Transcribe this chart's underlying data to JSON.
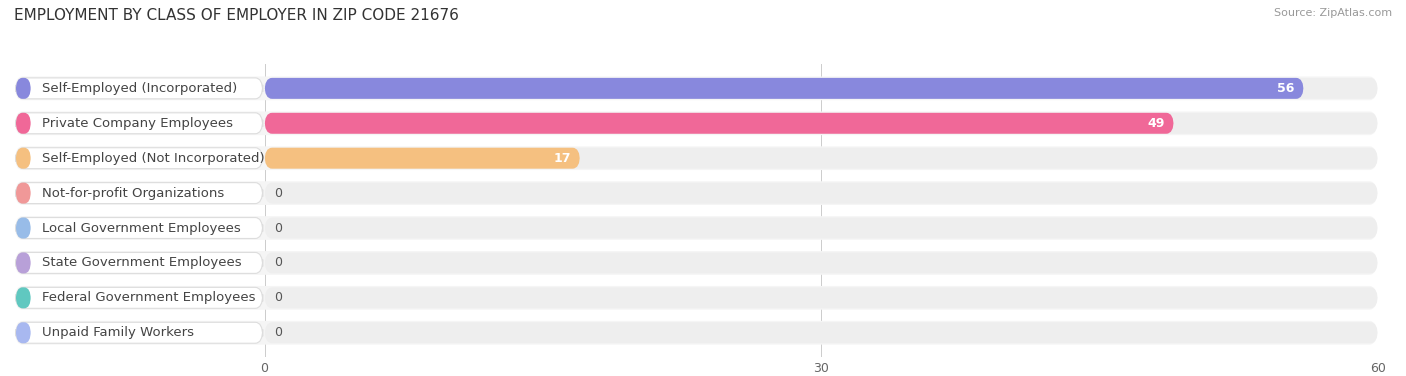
{
  "title": "EMPLOYMENT BY CLASS OF EMPLOYER IN ZIP CODE 21676",
  "source": "Source: ZipAtlas.com",
  "categories": [
    "Self-Employed (Incorporated)",
    "Private Company Employees",
    "Self-Employed (Not Incorporated)",
    "Not-for-profit Organizations",
    "Local Government Employees",
    "State Government Employees",
    "Federal Government Employees",
    "Unpaid Family Workers"
  ],
  "values": [
    56,
    49,
    17,
    0,
    0,
    0,
    0,
    0
  ],
  "bar_colors": [
    "#8888dd",
    "#f06898",
    "#f5c080",
    "#f09898",
    "#98bce8",
    "#b8a0d8",
    "#60c8c0",
    "#a8b8f0"
  ],
  "bar_bg_color": "#eeeeee",
  "row_bg_color": "#f5f5f5",
  "xlim": [
    0,
    60
  ],
  "xticks": [
    0,
    30,
    60
  ],
  "background_color": "#ffffff",
  "title_fontsize": 11,
  "label_fontsize": 9.5,
  "value_fontsize": 9
}
